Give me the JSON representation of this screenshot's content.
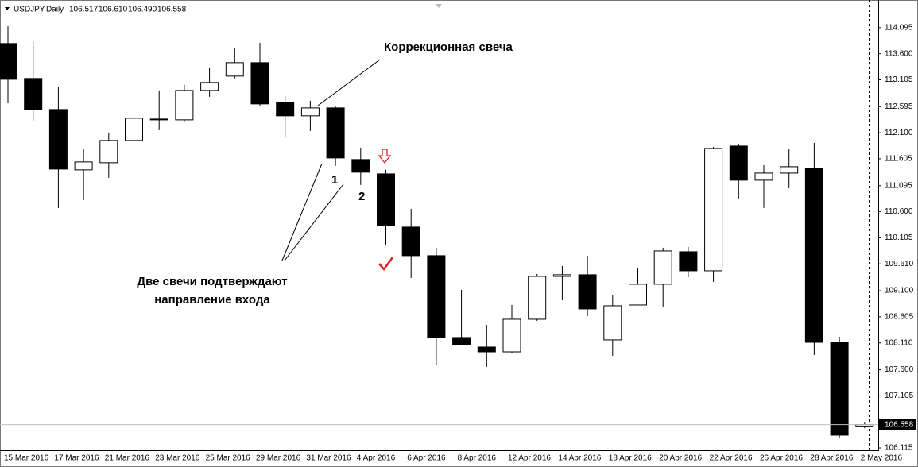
{
  "header": {
    "symbol": "USDJPY,Daily",
    "ohlc_labels": [
      "106.517",
      "106.610",
      "106.490",
      "106.558"
    ]
  },
  "chart_data": {
    "type": "candlestick",
    "categories": [
      "15 Mar 2016",
      null,
      "17 Mar 2016",
      null,
      "21 Mar 2016",
      null,
      "23 Mar 2016",
      null,
      "25 Mar 2016",
      null,
      "29 Mar 2016",
      null,
      "31 Mar 2016",
      null,
      "4 Apr 2016",
      null,
      "6 Apr 2016",
      null,
      "8 Apr 2016",
      null,
      "12 Apr 2016",
      null,
      "14 Apr 2016",
      null,
      "18 Apr 2016",
      null,
      "20 Apr 2016",
      null,
      "22 Apr 2016",
      null,
      "26 Apr 2016",
      null,
      "28 Apr 2016",
      null,
      "2 May 2016"
    ],
    "open": [
      113.793,
      113.13,
      112.541,
      111.395,
      111.531,
      111.953,
      112.345,
      112.345,
      112.903,
      113.175,
      113.431,
      112.677,
      112.421,
      112.571,
      111.591,
      111.319,
      110.309,
      109.766,
      108.212,
      108.031,
      107.94,
      108.559,
      109.373,
      109.404,
      108.167,
      108.83,
      109.223,
      109.841,
      109.479,
      111.847,
      111.199,
      111.334,
      111.425,
      108.121,
      106.517
    ],
    "high": [
      114.125,
      113.823,
      112.964,
      111.787,
      112.104,
      112.511,
      112.903,
      113.009,
      113.341,
      113.703,
      113.808,
      112.798,
      112.707,
      112.602,
      111.817,
      111.395,
      110.656,
      109.917,
      109.117,
      108.453,
      108.83,
      109.419,
      109.57,
      109.766,
      109.011,
      109.524,
      109.917,
      109.932,
      111.832,
      111.893,
      111.485,
      111.787,
      111.908,
      108.227,
      106.61
    ],
    "low": [
      112.662,
      112.33,
      110.671,
      110.822,
      111.244,
      111.395,
      112.149,
      112.315,
      112.783,
      113.13,
      112.617,
      112.028,
      112.134,
      111.47,
      111.108,
      109.977,
      109.343,
      107.684,
      108.076,
      107.654,
      107.91,
      108.529,
      108.921,
      108.619,
      107.865,
      108.83,
      108.785,
      109.358,
      109.268,
      110.852,
      110.671,
      111.048,
      107.88,
      106.311,
      106.49
    ],
    "close": [
      113.114,
      112.541,
      111.41,
      111.546,
      111.953,
      112.375,
      112.36,
      112.903,
      113.054,
      113.431,
      112.647,
      112.421,
      112.571,
      111.621,
      111.35,
      110.339,
      109.766,
      108.212,
      108.076,
      107.94,
      108.559,
      109.373,
      109.404,
      108.755,
      108.815,
      109.223,
      109.856,
      109.479,
      111.802,
      111.199,
      111.334,
      111.455,
      108.121,
      106.357,
      106.558
    ],
    "up_color": "#ffffff",
    "down_color": "#000000",
    "ylim": [
      106.07,
      114.56
    ],
    "yticks": [
      114.095,
      {
        "value": 113.6,
        "label": "113.600"
      },
      113.105,
      112.595,
      {
        "value": 112.1,
        "label": "112.100"
      },
      111.605,
      111.095,
      {
        "value": 110.6,
        "label": "110.600"
      },
      110.105,
      {
        "value": 109.61,
        "label": "109.610"
      },
      {
        "value": 109.1,
        "label": "109.100"
      },
      108.605,
      {
        "value": 108.11,
        "label": "108.110"
      },
      {
        "value": 107.6,
        "label": "107.600"
      },
      107.105,
      106.115
    ],
    "annotations": [
      "Коррекционная свеча",
      "1",
      "2",
      "Две свечи подтверждают",
      "направление входа"
    ]
  }
}
